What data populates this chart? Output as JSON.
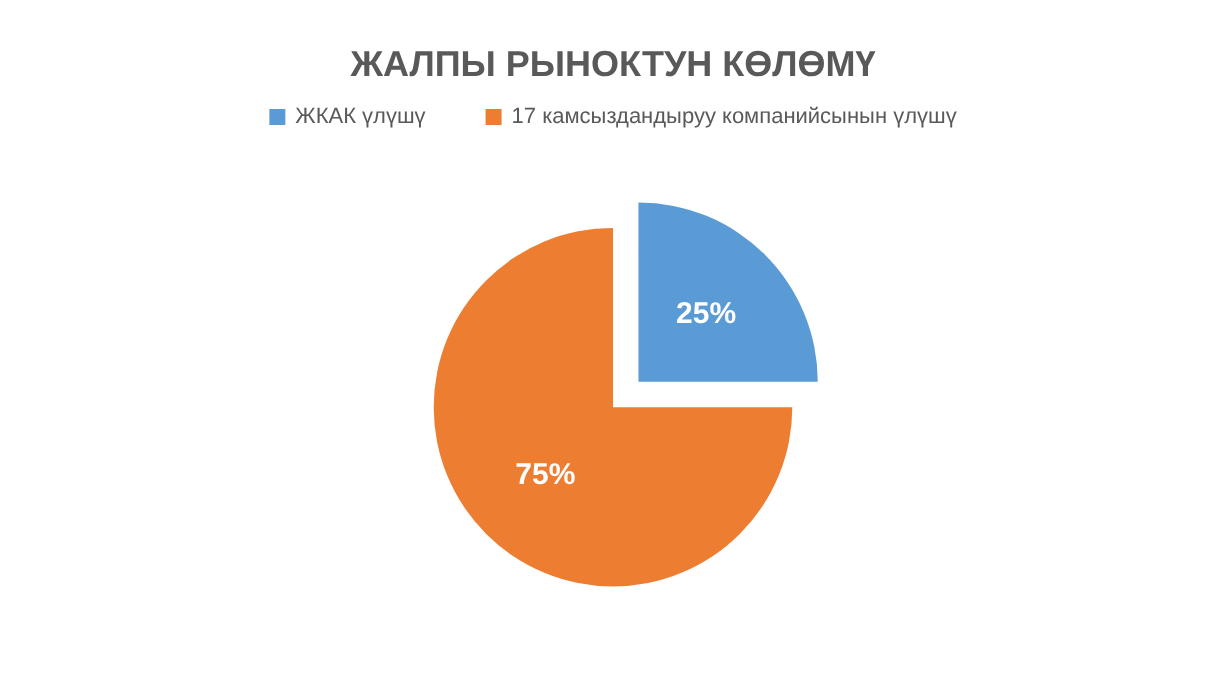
{
  "chart_data": {
    "type": "pie",
    "title": "ЖАЛПЫ РЫНОКТУН КӨЛӨМҮ",
    "categories": [
      "ЖКАК үлүшү",
      "17 камсыздандыруу компанийсынын үлүшү"
    ],
    "values": [
      25,
      75
    ],
    "colors": [
      "#5b9bd5",
      "#ed7d31"
    ],
    "value_labels": [
      "25%",
      "75%"
    ],
    "legend": "top"
  }
}
